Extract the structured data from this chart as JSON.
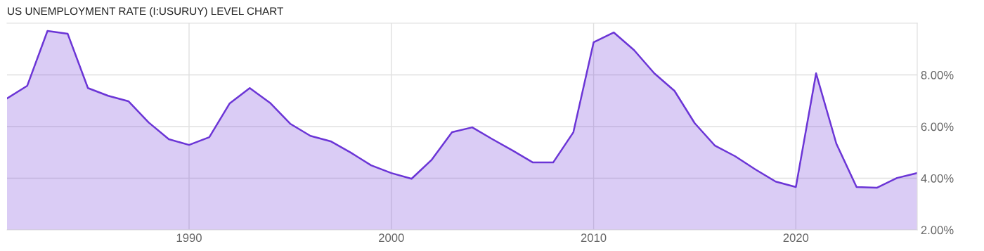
{
  "chart_data": {
    "type": "area",
    "title": "US UNEMPLOYMENT RATE (I:USURUY) LEVEL CHART",
    "x": [
      1981,
      1982,
      1983,
      1984,
      1985,
      1986,
      1987,
      1988,
      1989,
      1990,
      1991,
      1992,
      1993,
      1994,
      1995,
      1996,
      1997,
      1998,
      1999,
      2000,
      2001,
      2002,
      2003,
      2004,
      2005,
      2006,
      2007,
      2008,
      2009,
      2010,
      2011,
      2012,
      2013,
      2014,
      2015,
      2016,
      2017,
      2018,
      2019,
      2020,
      2021,
      2022,
      2023,
      2024,
      2025,
      2026
    ],
    "series": [
      {
        "color": "#6b35d6",
        "values": [
          7.09,
          7.58,
          9.7,
          9.59,
          7.49,
          7.19,
          6.98,
          6.16,
          5.51,
          5.29,
          5.59,
          6.89,
          7.49,
          6.92,
          6.11,
          5.64,
          5.43,
          4.99,
          4.5,
          4.2,
          3.98,
          4.72,
          5.78,
          5.97,
          5.51,
          5.07,
          4.61,
          4.61,
          5.78,
          9.26,
          9.64,
          8.96,
          8.06,
          7.38,
          6.13,
          5.26,
          4.85,
          4.34,
          3.87,
          3.66,
          8.06,
          5.34,
          3.66,
          3.63,
          4.01,
          4.2
        ]
      }
    ],
    "xlim": [
      1981,
      2026
    ],
    "xticks": [
      1990,
      2000,
      2010,
      2020
    ],
    "ylim": [
      2,
      10
    ],
    "yticks": [
      {
        "value": 2,
        "label": "2.00%"
      },
      {
        "value": 4,
        "label": "4.00%"
      },
      {
        "value": 6,
        "label": "6.00%"
      },
      {
        "value": 8,
        "label": "8.00%"
      }
    ],
    "grid": true,
    "legend": false
  }
}
